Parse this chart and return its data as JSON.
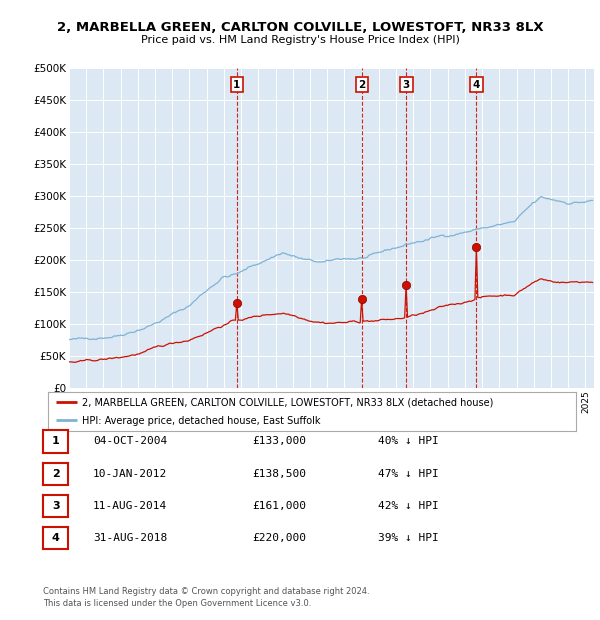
{
  "title1": "2, MARBELLA GREEN, CARLTON COLVILLE, LOWESTOFT, NR33 8LX",
  "title2": "Price paid vs. HM Land Registry's House Price Index (HPI)",
  "ylabel_ticks": [
    "£0",
    "£50K",
    "£100K",
    "£150K",
    "£200K",
    "£250K",
    "£300K",
    "£350K",
    "£400K",
    "£450K",
    "£500K"
  ],
  "ytick_values": [
    0,
    50000,
    100000,
    150000,
    200000,
    250000,
    300000,
    350000,
    400000,
    450000,
    500000
  ],
  "xmin": 1995.0,
  "xmax": 2025.5,
  "ymin": 0,
  "ymax": 500000,
  "background_color": "#dce9f5",
  "legend_label_red": "2, MARBELLA GREEN, CARLTON COLVILLE, LOWESTOFT, NR33 8LX (detached house)",
  "legend_label_blue": "HPI: Average price, detached house, East Suffolk",
  "sales": [
    {
      "num": 1,
      "date": "04-OCT-2004",
      "price": 133000,
      "pct": "40%",
      "year": 2004.75
    },
    {
      "num": 2,
      "date": "10-JAN-2012",
      "price": 138500,
      "pct": "47%",
      "year": 2012.03
    },
    {
      "num": 3,
      "date": "11-AUG-2014",
      "price": 161000,
      "pct": "42%",
      "year": 2014.6
    },
    {
      "num": 4,
      "date": "31-AUG-2018",
      "price": 220000,
      "pct": "39%",
      "year": 2018.67
    }
  ],
  "footer1": "Contains HM Land Registry data © Crown copyright and database right 2024.",
  "footer2": "This data is licensed under the Open Government Licence v3.0."
}
